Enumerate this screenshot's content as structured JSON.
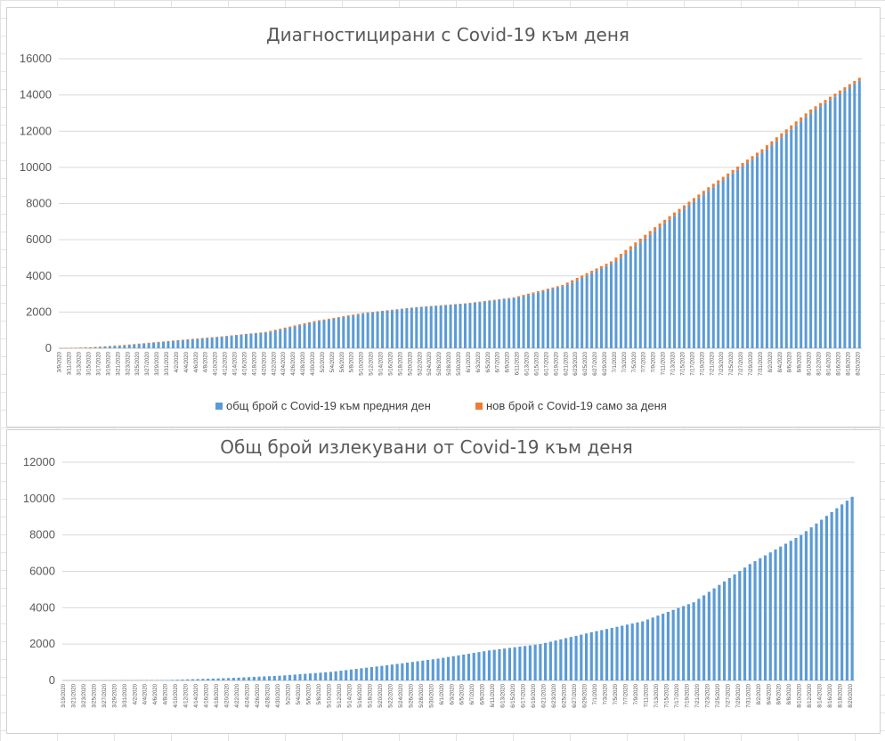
{
  "colors": {
    "blue": "#5b9bd5",
    "orange": "#ed7d31",
    "grid": "#d9d9d9",
    "text": "#595959"
  },
  "chart_data": [
    {
      "type": "bar",
      "stacked": true,
      "title": "Диагностицирани с Covid-19 към деня",
      "ylim": [
        0,
        16000
      ],
      "yticks": [
        0,
        2000,
        4000,
        6000,
        8000,
        10000,
        12000,
        14000,
        16000
      ],
      "x_start": "3/9/2020",
      "x_end": "8/20/2020",
      "x_tick_labels": [
        "3/9/2020",
        "3/11/2020",
        "3/13/2020",
        "3/15/2020",
        "3/17/2020",
        "3/19/2020",
        "3/21/2020",
        "3/23/2020",
        "3/25/2020",
        "3/27/2020",
        "3/29/2020",
        "3/31/2020",
        "4/2/2020",
        "4/4/2020",
        "4/6/2020",
        "4/8/2020",
        "4/10/2020",
        "4/12/2020",
        "4/14/2020",
        "4/16/2020",
        "4/18/2020",
        "4/20/2020",
        "4/22/2020",
        "4/24/2020",
        "4/26/2020",
        "4/28/2020",
        "4/30/2020",
        "5/2/2020",
        "5/4/2020",
        "5/6/2020",
        "5/8/2020",
        "5/10/2020",
        "5/12/2020",
        "5/14/2020",
        "5/16/2020",
        "5/18/2020",
        "5/20/2020",
        "5/22/2020",
        "5/24/2020",
        "5/26/2020",
        "5/28/2020",
        "5/30/2020",
        "6/1/2020",
        "6/3/2020",
        "6/5/2020",
        "6/7/2020",
        "6/9/2020",
        "6/11/2020",
        "6/13/2020",
        "6/15/2020",
        "6/17/2020",
        "6/19/2020",
        "6/21/2020",
        "6/23/2020",
        "6/25/2020",
        "6/27/2020",
        "6/29/2020",
        "7/1/2020",
        "7/3/2020",
        "7/5/2020",
        "7/7/2020",
        "7/9/2020",
        "7/11/2020",
        "7/13/2020",
        "7/15/2020",
        "7/17/2020",
        "7/19/2020",
        "7/21/2020",
        "7/23/2020",
        "7/25/2020",
        "7/27/2020",
        "7/29/2020",
        "7/31/2020",
        "8/2/2020",
        "8/4/2020",
        "8/6/2020",
        "8/8/2020",
        "8/10/2020",
        "8/12/2020",
        "8/14/2020",
        "8/16/2020",
        "8/18/2020",
        "8/20/2020"
      ],
      "series": [
        {
          "name": "общ брой с Covid-19 към предния ден",
          "color": "#5b9bd5"
        },
        {
          "name": "нов брой с Covid-19 само за деня",
          "color": "#ed7d31"
        }
      ],
      "cumulative_anchors": [
        [
          "3/9/2020",
          4
        ],
        [
          "3/15/2020",
          50
        ],
        [
          "3/21/2020",
          160
        ],
        [
          "3/31/2020",
          400
        ],
        [
          "4/10/2020",
          630
        ],
        [
          "4/20/2020",
          900
        ],
        [
          "4/30/2020",
          1500
        ],
        [
          "5/10/2020",
          1950
        ],
        [
          "5/20/2020",
          2250
        ],
        [
          "5/31/2020",
          2480
        ],
        [
          "6/10/2020",
          2810
        ],
        [
          "6/20/2020",
          3500
        ],
        [
          "6/30/2020",
          4800
        ],
        [
          "7/10/2020",
          6900
        ],
        [
          "7/20/2020",
          8900
        ],
        [
          "7/31/2020",
          11000
        ],
        [
          "8/10/2020",
          13200
        ],
        [
          "8/20/2020",
          14950
        ]
      ],
      "legend_position": "bottom"
    },
    {
      "type": "bar",
      "title": "Общ брой излекувани от Covid-19 към деня",
      "ylim": [
        0,
        12000
      ],
      "yticks": [
        0,
        2000,
        4000,
        6000,
        8000,
        10000,
        12000
      ],
      "x_start": "3/19/2020",
      "x_end": "8/20/2020",
      "x_tick_labels": [
        "3/19/2020",
        "3/21/2020",
        "3/23/2020",
        "3/25/2020",
        "3/27/2020",
        "3/29/2020",
        "3/31/2020",
        "4/2/2020",
        "4/4/2020",
        "4/6/2020",
        "4/8/2020",
        "4/10/2020",
        "4/12/2020",
        "4/14/2020",
        "4/16/2020",
        "4/18/2020",
        "4/20/2020",
        "4/22/2020",
        "4/24/2020",
        "4/26/2020",
        "4/28/2020",
        "4/30/2020",
        "5/2/2020",
        "5/4/2020",
        "5/6/2020",
        "5/8/2020",
        "5/10/2020",
        "5/12/2020",
        "5/14/2020",
        "5/16/2020",
        "5/18/2020",
        "5/20/2020",
        "5/22/2020",
        "5/24/2020",
        "5/26/2020",
        "5/28/2020",
        "5/30/2020",
        "6/1/2020",
        "6/3/2020",
        "6/5/2020",
        "6/7/2020",
        "6/9/2020",
        "6/11/2020",
        "6/13/2020",
        "6/15/2020",
        "6/17/2020",
        "6/19/2020",
        "6/21/2020",
        "6/23/2020",
        "6/25/2020",
        "6/27/2020",
        "6/29/2020",
        "7/1/2020",
        "7/3/2020",
        "7/5/2020",
        "7/7/2020",
        "7/9/2020",
        "7/11/2020",
        "7/13/2020",
        "7/15/2020",
        "7/17/2020",
        "7/19/2020",
        "7/21/2020",
        "7/23/2020",
        "7/25/2020",
        "7/27/2020",
        "7/29/2020",
        "7/31/2020",
        "8/2/2020",
        "8/4/2020",
        "8/6/2020",
        "8/8/2020",
        "8/10/2020",
        "8/12/2020",
        "8/14/2020",
        "8/16/2020",
        "8/18/2020",
        "8/20/2020"
      ],
      "series": [
        {
          "name": "",
          "color": "#5b9bd5"
        }
      ],
      "cumulative_anchors": [
        [
          "3/19/2020",
          0
        ],
        [
          "4/8/2020",
          20
        ],
        [
          "4/10/2020",
          40
        ],
        [
          "4/20/2020",
          130
        ],
        [
          "4/30/2020",
          260
        ],
        [
          "5/10/2020",
          470
        ],
        [
          "5/20/2020",
          800
        ],
        [
          "5/31/2020",
          1200
        ],
        [
          "6/10/2020",
          1650
        ],
        [
          "6/20/2020",
          2000
        ],
        [
          "6/30/2020",
          2650
        ],
        [
          "7/10/2020",
          3250
        ],
        [
          "7/20/2020",
          4300
        ],
        [
          "7/31/2020",
          6400
        ],
        [
          "8/10/2020",
          8000
        ],
        [
          "8/20/2020",
          10100
        ]
      ]
    }
  ]
}
